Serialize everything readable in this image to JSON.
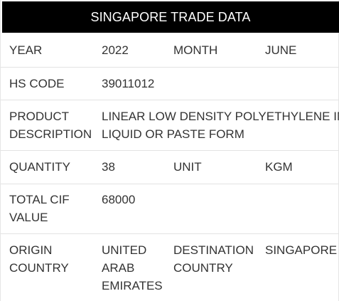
{
  "title": "SINGAPORE TRADE DATA",
  "rows": {
    "year": {
      "label": "YEAR",
      "value": "2022",
      "label2": "MONTH",
      "value2": "JUNE"
    },
    "hs_code": {
      "label": "HS CODE",
      "value": "39011012"
    },
    "product_description": {
      "label_line1": "PRODUCT",
      "label_line2": "DESCRIPTION",
      "value_line1": "LINEAR LOW DENSITY POLYETHYLENE IN",
      "value_line2": "LIQUID OR PASTE FORM"
    },
    "quantity": {
      "label": "QUANTITY",
      "value": "38",
      "label2": "UNIT",
      "value2": "KGM"
    },
    "total_cif": {
      "label_line1": "TOTAL CIF",
      "label_line2": "VALUE",
      "value": "68000"
    },
    "origin": {
      "label_line1": "ORIGIN",
      "label_line2": "COUNTRY",
      "value_line1": "UNITED",
      "value_line2": "ARAB",
      "value_line3": "EMIRATES",
      "label2_line1": "DESTINATION",
      "label2_line2": "COUNTRY",
      "value2": "SINGAPORE"
    }
  }
}
